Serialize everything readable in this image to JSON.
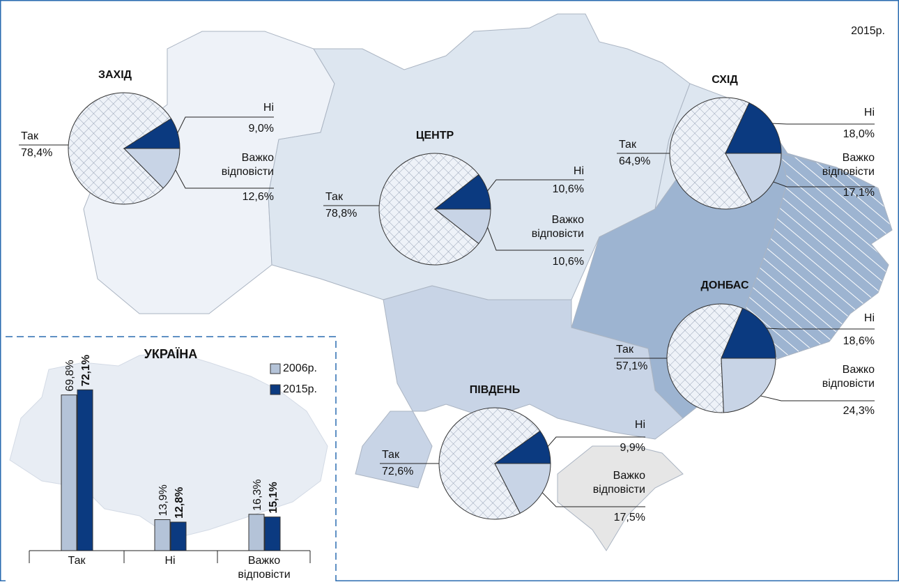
{
  "year": "2015р.",
  "chart_data": [
    {
      "type": "pie",
      "title": "ЗАХІД",
      "categories": [
        "Так",
        "Ні",
        "Важко відповісти"
      ],
      "values": [
        78.4,
        9.0,
        12.6
      ],
      "value_labels": [
        "78,4%",
        "9,0%",
        "12,6%"
      ],
      "colors": [
        "#eef2f8",
        "#0b3a80",
        "#c8d4e6"
      ]
    },
    {
      "type": "pie",
      "title": "ЦЕНТР",
      "categories": [
        "Так",
        "Ні",
        "Важко відповісти"
      ],
      "values": [
        78.8,
        10.6,
        10.6
      ],
      "value_labels": [
        "78,8%",
        "10,6%",
        "10,6%"
      ],
      "colors": [
        "#eef2f8",
        "#0b3a80",
        "#c8d4e6"
      ]
    },
    {
      "type": "pie",
      "title": "СХІД",
      "categories": [
        "Так",
        "Ні",
        "Важко відповісти"
      ],
      "values": [
        64.9,
        18.0,
        17.1
      ],
      "value_labels": [
        "64,9%",
        "18,0%",
        "17,1%"
      ],
      "colors": [
        "#eef2f8",
        "#0b3a80",
        "#c8d4e6"
      ]
    },
    {
      "type": "pie",
      "title": "ДОНБАС",
      "categories": [
        "Так",
        "Ні",
        "Важко відповісти"
      ],
      "values": [
        57.1,
        18.6,
        24.3
      ],
      "value_labels": [
        "57,1%",
        "18,6%",
        "24,3%"
      ],
      "colors": [
        "#eef2f8",
        "#0b3a80",
        "#c8d4e6"
      ]
    },
    {
      "type": "pie",
      "title": "ПІВДЕНЬ",
      "categories": [
        "Так",
        "Ні",
        "Важко відповісти"
      ],
      "values": [
        72.6,
        9.9,
        17.5
      ],
      "value_labels": [
        "72,6%",
        "9,9%",
        "17,5%"
      ],
      "colors": [
        "#eef2f8",
        "#0b3a80",
        "#c8d4e6"
      ]
    },
    {
      "type": "bar",
      "title": "УКРАЇНА",
      "categories": [
        "Так",
        "Ні",
        "Важко відповісти"
      ],
      "series": [
        {
          "name": "2006р.",
          "color": "#b4c3d8",
          "values": [
            69.8,
            13.9,
            16.3
          ],
          "value_labels": [
            "69,8%",
            "13,9%",
            "16,3%"
          ]
        },
        {
          "name": "2015р.",
          "color": "#0b3a80",
          "values": [
            72.1,
            12.8,
            15.1
          ],
          "value_labels": [
            "72,1%",
            "12,8%",
            "15,1%"
          ]
        }
      ]
    }
  ]
}
